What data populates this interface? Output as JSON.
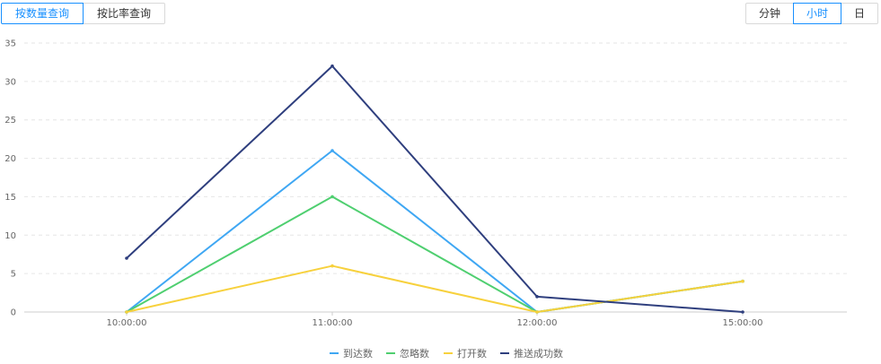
{
  "query_tabs": [
    {
      "label": "按数量查询",
      "active": true
    },
    {
      "label": "按比率查询",
      "active": false
    }
  ],
  "unit_tabs": [
    {
      "label": "分钟",
      "active": false
    },
    {
      "label": "小时",
      "active": true
    },
    {
      "label": "日",
      "active": false
    }
  ],
  "chart_data": {
    "type": "line",
    "categories": [
      "10:00:00",
      "11:00:00",
      "12:00:00",
      "15:00:00"
    ],
    "ylim": [
      0,
      35
    ],
    "yticks": [
      0,
      5,
      10,
      15,
      20,
      25,
      30,
      35
    ],
    "grid": true,
    "legend_position": "bottom",
    "series": [
      {
        "name": "到达数",
        "color": "#3fa7f3",
        "values": [
          0,
          21,
          0,
          4
        ]
      },
      {
        "name": "忽略数",
        "color": "#4fcf70",
        "values": [
          0,
          15,
          0,
          4
        ]
      },
      {
        "name": "打开数",
        "color": "#f7d13d",
        "values": [
          0,
          6,
          0,
          4
        ]
      },
      {
        "name": "推送成功数",
        "color": "#2f3f7e",
        "values": [
          7,
          32,
          2,
          0
        ]
      }
    ]
  }
}
